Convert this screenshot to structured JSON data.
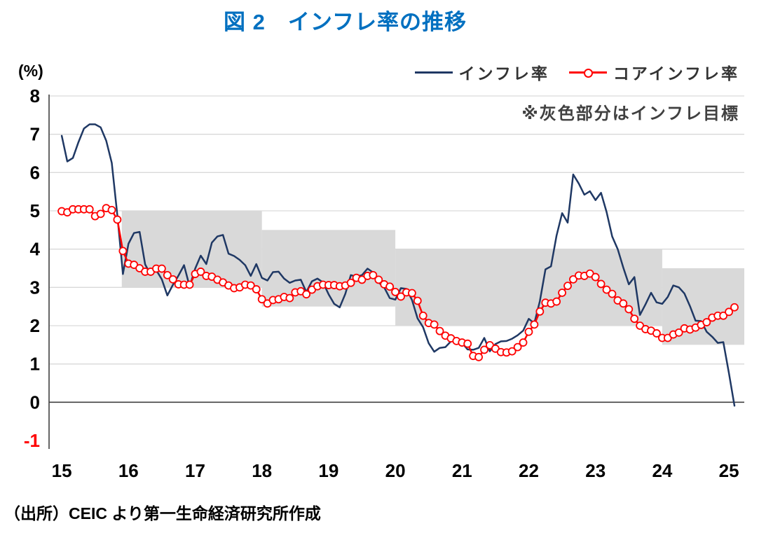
{
  "page": {
    "source": "（出所）CEIC より第一生命経済研究所作成"
  },
  "chart_data": {
    "type": "line",
    "title": "図 2　インフレ率の推移",
    "y_unit": "(%)",
    "note": "※灰色部分はインフレ目標",
    "band_color": "#D9D9D9",
    "grid_color": "#D9D9D9",
    "axis_color": "#404040",
    "negative_tick_color": "#FF0000",
    "xlim": [
      14.81,
      25.23
    ],
    "ylim": [
      -1,
      8
    ],
    "x_ticks": [
      15,
      16,
      17,
      18,
      19,
      20,
      21,
      22,
      23,
      24,
      25
    ],
    "y_ticks": [
      8,
      7,
      6,
      5,
      4,
      3,
      2,
      1,
      0,
      -1
    ],
    "x_start": 15.0,
    "x_step": 0.08333,
    "target_bands": [
      {
        "x_start": 15.9,
        "x_end": 18.0,
        "low": 3.0,
        "high": 5.0
      },
      {
        "x_start": 18.0,
        "x_end": 20.0,
        "low": 2.5,
        "high": 4.5
      },
      {
        "x_start": 20.0,
        "x_end": 24.0,
        "low": 2.0,
        "high": 4.0
      },
      {
        "x_start": 24.0,
        "x_end": 25.23,
        "low": 1.5,
        "high": 3.5
      }
    ],
    "series": [
      {
        "name": "インフレ率",
        "color": "#1F3864",
        "marker": "none",
        "values": [
          6.96,
          6.29,
          6.38,
          6.79,
          7.15,
          7.26,
          7.26,
          7.18,
          6.83,
          6.25,
          4.89,
          3.35,
          4.14,
          4.42,
          4.45,
          3.6,
          3.33,
          3.45,
          3.21,
          2.79,
          3.07,
          3.31,
          3.58,
          3.02,
          3.49,
          3.83,
          3.61,
          4.17,
          4.33,
          4.37,
          3.88,
          3.82,
          3.72,
          3.58,
          3.3,
          3.61,
          3.25,
          3.18,
          3.4,
          3.41,
          3.23,
          3.12,
          3.18,
          3.2,
          2.88,
          3.16,
          3.23,
          3.13,
          2.82,
          2.57,
          2.48,
          2.83,
          3.32,
          3.28,
          3.32,
          3.49,
          3.39,
          3.13,
          3.0,
          2.72,
          2.68,
          2.98,
          2.96,
          2.67,
          2.19,
          1.96,
          1.54,
          1.32,
          1.42,
          1.44,
          1.59,
          1.68,
          1.55,
          1.38,
          1.37,
          1.42,
          1.68,
          1.33,
          1.52,
          1.59,
          1.6,
          1.66,
          1.75,
          1.87,
          2.18,
          2.06,
          2.64,
          3.47,
          3.55,
          4.35,
          4.94,
          4.69,
          5.95,
          5.71,
          5.42,
          5.51,
          5.28,
          5.47,
          4.97,
          4.33,
          4.0,
          3.52,
          3.08,
          3.27,
          2.28,
          2.56,
          2.86,
          2.61,
          2.57,
          2.75,
          3.05,
          3.0,
          2.84,
          2.51,
          2.13,
          2.12,
          1.84,
          1.71,
          1.55,
          1.57,
          0.76,
          -0.09
        ]
      },
      {
        "name": "コアインフレ率",
        "color": "#FF0000",
        "marker": "circle",
        "values": [
          4.99,
          4.96,
          5.04,
          5.04,
          5.04,
          5.04,
          4.86,
          4.92,
          5.07,
          5.02,
          4.77,
          3.95,
          3.62,
          3.59,
          3.5,
          3.41,
          3.41,
          3.49,
          3.49,
          3.32,
          3.21,
          3.08,
          3.07,
          3.07,
          3.35,
          3.41,
          3.3,
          3.28,
          3.2,
          3.13,
          3.05,
          2.98,
          3.0,
          3.07,
          3.05,
          2.95,
          2.69,
          2.58,
          2.67,
          2.69,
          2.75,
          2.72,
          2.87,
          2.9,
          2.82,
          2.94,
          3.03,
          3.07,
          3.06,
          3.06,
          3.03,
          3.05,
          3.12,
          3.25,
          3.2,
          3.3,
          3.32,
          3.2,
          3.08,
          3.02,
          2.88,
          2.76,
          2.87,
          2.85,
          2.65,
          2.26,
          2.07,
          2.03,
          1.86,
          1.74,
          1.67,
          1.6,
          1.56,
          1.53,
          1.21,
          1.18,
          1.37,
          1.49,
          1.4,
          1.31,
          1.3,
          1.33,
          1.44,
          1.56,
          1.84,
          2.03,
          2.37,
          2.6,
          2.58,
          2.63,
          2.86,
          3.04,
          3.21,
          3.31,
          3.3,
          3.36,
          3.27,
          3.09,
          2.94,
          2.83,
          2.66,
          2.58,
          2.43,
          2.18,
          2.0,
          1.91,
          1.87,
          1.8,
          1.68,
          1.68,
          1.77,
          1.82,
          1.93,
          1.9,
          1.95,
          2.02,
          2.09,
          2.21,
          2.26,
          2.26,
          2.36,
          2.48
        ]
      }
    ]
  }
}
